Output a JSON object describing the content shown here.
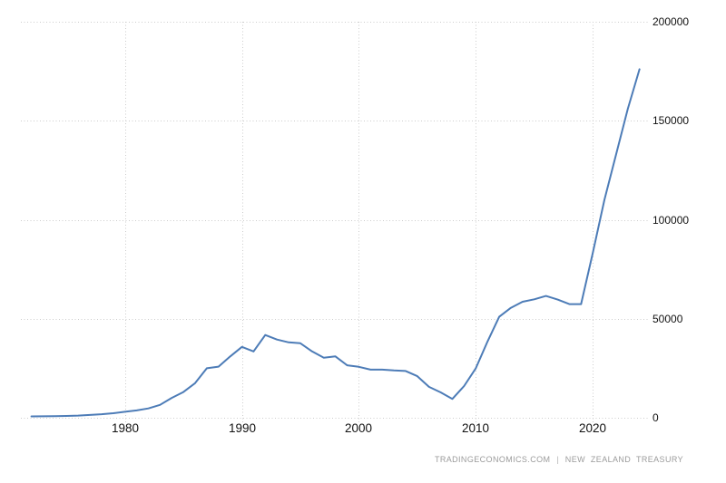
{
  "chart": {
    "attribution": {
      "source_site": "TRADINGECONOMICS.COM",
      "separator": "|",
      "source_provider": "NEW ZEALAND TREASURY"
    }
  },
  "chart_data": {
    "type": "line",
    "title": "",
    "x": [
      1972,
      1973,
      1974,
      1975,
      1976,
      1977,
      1978,
      1979,
      1980,
      1981,
      1982,
      1983,
      1984,
      1985,
      1986,
      1987,
      1988,
      1989,
      1990,
      1991,
      1992,
      1993,
      1994,
      1995,
      1996,
      1997,
      1998,
      1999,
      2000,
      2001,
      2002,
      2003,
      2004,
      2005,
      2006,
      2007,
      2008,
      2009,
      2010,
      2011,
      2012,
      2013,
      2014,
      2015,
      2016,
      2017,
      2018,
      2019,
      2020,
      2021,
      2022,
      2023,
      2024
    ],
    "values": [
      700,
      750,
      800,
      900,
      1100,
      1400,
      1800,
      2300,
      3000,
      3700,
      4700,
      6500,
      10000,
      13000,
      17500,
      25000,
      25800,
      31000,
      35800,
      33500,
      41800,
      39500,
      38100,
      37600,
      33500,
      30300,
      31000,
      26500,
      25700,
      24300,
      24300,
      23900,
      23600,
      21000,
      15600,
      12800,
      9500,
      16000,
      25000,
      38500,
      51000,
      55500,
      58600,
      59800,
      61500,
      59700,
      57400,
      57400,
      83000,
      110000,
      133000,
      156000,
      176000
    ],
    "xlabel": "",
    "ylabel": "",
    "xlim": [
      1971.1,
      2024.8
    ],
    "ylim": [
      0,
      200000
    ],
    "xticks": [
      1980,
      1990,
      2000,
      2010,
      2020
    ],
    "xtick_labels": [
      "1980",
      "1990",
      "2000",
      "2010",
      "2020"
    ],
    "yticks": [
      0,
      50000,
      100000,
      150000,
      200000
    ],
    "ytick_labels": [
      "0",
      "50000",
      "100000",
      "150000",
      "200000"
    ],
    "grid": "dotted",
    "legend": "none",
    "y_axis_side": "right",
    "line_color": "#4d7cb7",
    "grid_color": "#cccccc",
    "label_color": "#111111",
    "background_color": "#ffffff"
  }
}
